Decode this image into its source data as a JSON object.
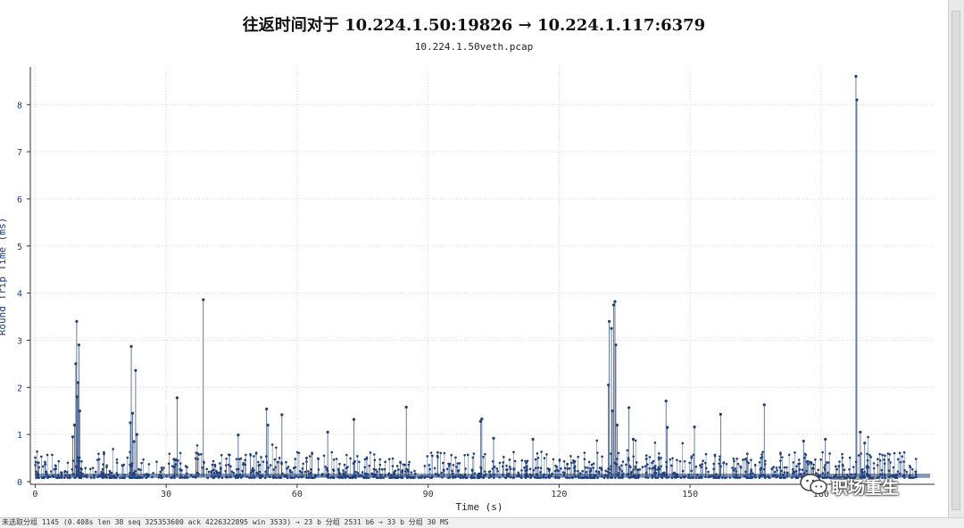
{
  "chart_data": {
    "type": "scatter",
    "title": "往返时间对于 10.224.1.50:19826 → 10.224.1.117:6379",
    "subtitle": "10.224.1.50veth.pcap",
    "xlabel": "Time (s)",
    "ylabel": "Round Trip Time (ms)",
    "xlim": [
      -0.5,
      206
    ],
    "ylim": [
      0,
      8.8
    ],
    "x_ticks": [
      0,
      30,
      60,
      90,
      120,
      150,
      180
    ],
    "x_tick_labels": [
      "0",
      "30",
      "60",
      "90",
      "120",
      "150",
      "180"
    ],
    "y_ticks": [
      0,
      1,
      2,
      3,
      4,
      5,
      6,
      7,
      8
    ],
    "grid": true,
    "series": [
      {
        "color": "#1f3f7a",
        "baseline": 0.12,
        "points": [
          [
            9.5,
            3.4
          ],
          [
            10.0,
            2.9
          ],
          [
            9.3,
            2.5
          ],
          [
            9.8,
            2.1
          ],
          [
            9.6,
            1.8
          ],
          [
            10.2,
            1.5
          ],
          [
            9.0,
            1.2
          ],
          [
            8.6,
            0.95
          ],
          [
            22.0,
            2.87
          ],
          [
            23.0,
            2.36
          ],
          [
            22.3,
            1.45
          ],
          [
            21.8,
            1.25
          ],
          [
            23.3,
            1.0
          ],
          [
            22.6,
            0.85
          ],
          [
            32.5,
            1.78
          ],
          [
            38.5,
            3.86
          ],
          [
            46.5,
            0.99
          ],
          [
            53.0,
            1.54
          ],
          [
            53.3,
            1.2
          ],
          [
            56.5,
            1.42
          ],
          [
            67.0,
            1.05
          ],
          [
            73.0,
            1.32
          ],
          [
            85.0,
            1.58
          ],
          [
            102.0,
            1.28
          ],
          [
            102.3,
            1.33
          ],
          [
            105.0,
            0.92
          ],
          [
            114.0,
            0.9
          ],
          [
            131.5,
            3.4
          ],
          [
            132.0,
            3.25
          ],
          [
            132.5,
            3.75
          ],
          [
            132.8,
            3.82
          ],
          [
            133.0,
            2.9
          ],
          [
            131.3,
            2.05
          ],
          [
            132.2,
            1.5
          ],
          [
            133.3,
            1.2
          ],
          [
            136.0,
            1.57
          ],
          [
            137.0,
            0.9
          ],
          [
            144.5,
            1.71
          ],
          [
            144.8,
            1.15
          ],
          [
            151.0,
            1.16
          ],
          [
            157.0,
            1.43
          ],
          [
            167.0,
            1.63
          ],
          [
            176.0,
            0.86
          ],
          [
            181.0,
            0.9
          ],
          [
            189.0,
            1.05
          ],
          [
            190.0,
            0.82
          ],
          [
            188.0,
            8.6
          ],
          [
            188.2,
            8.1
          ]
        ]
      }
    ]
  },
  "status": {
    "text": "未选取分组 1145 (0.408s len 38 seq 325353600 ack 4226322895 win 3533) → 23 b 分组 2531 b6 → 33 b 分组 30 MS"
  },
  "watermark": {
    "text": "职场重生",
    "icon": "wechat-icon"
  }
}
